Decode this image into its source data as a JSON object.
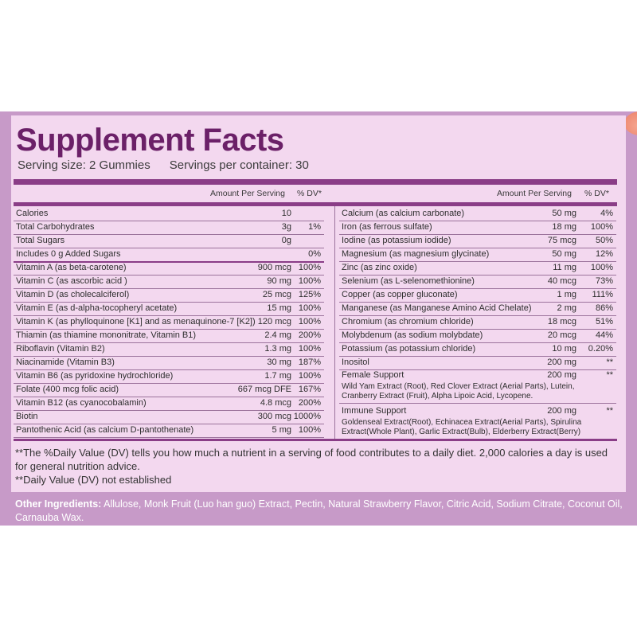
{
  "title": "Supplement Facts",
  "serving_size": "Serving size: 2 Gummies",
  "servings_per_container": "Servings per container: 30",
  "header": {
    "amount_per_serving": "Amount Per Serving",
    "dv": "% DV*"
  },
  "left_rows": [
    {
      "label": "Calories",
      "amount": "10",
      "dv": ""
    },
    {
      "label": "Total Carbohydrates",
      "amount": "3g",
      "dv": "1%"
    },
    {
      "label": "Total Sugars",
      "amount": "0g",
      "dv": ""
    },
    {
      "label": "Includes 0 g Added Sugars",
      "amount": "",
      "dv": "0%"
    },
    {
      "label": "Vitamin A (as beta-carotene)",
      "amount": "900 mcg",
      "dv": "100%"
    },
    {
      "label": "Vitamin C (as ascorbic acid )",
      "amount": "90 mg",
      "dv": "100%"
    },
    {
      "label": "Vitamin D (as cholecalciferol)",
      "amount": "25 mcg",
      "dv": "125%"
    },
    {
      "label": "Vitamin E (as d-alpha-tocopheryl acetate)",
      "amount": "15 mg",
      "dv": "100%"
    },
    {
      "label": "Vitamin K (as phylloquinone [K1] and as menaquinone-7 [K2])",
      "amount": "120 mcg",
      "dv": "100%"
    },
    {
      "label": "Thiamin (as thiamine mononitrate, Vitamin B1)",
      "amount": "2.4 mg",
      "dv": "200%"
    },
    {
      "label": "Riboflavin (Vitamin B2)",
      "amount": "1.3 mg",
      "dv": "100%"
    },
    {
      "label": "Niacinamide (Vitamin B3)",
      "amount": "30 mg",
      "dv": "187%"
    },
    {
      "label": "Vitamin B6 (as pyridoxine hydrochloride)",
      "amount": "1.7 mg",
      "dv": "100%"
    },
    {
      "label": "Folate (400 mcg folic acid)",
      "amount": "667 mcg DFE",
      "dv": "167%"
    },
    {
      "label": "Vitamin B12 (as cyanocobalamin)",
      "amount": "4.8 mcg",
      "dv": "200%"
    },
    {
      "label": "Biotin",
      "amount": "300 mcg",
      "dv": "1000%"
    },
    {
      "label": "Pantothenic Acid (as calcium D-pantothenate)",
      "amount": "5 mg",
      "dv": "100%"
    }
  ],
  "right_rows": [
    {
      "label": "Calcium (as calcium carbonate)",
      "amount": "50 mg",
      "dv": "4%"
    },
    {
      "label": "Iron (as ferrous sulfate)",
      "amount": "18 mg",
      "dv": "100%"
    },
    {
      "label": "Iodine (as potassium iodide)",
      "amount": "75 mcg",
      "dv": "50%"
    },
    {
      "label": "Magnesium (as magnesium glycinate)",
      "amount": "50 mg",
      "dv": "12%"
    },
    {
      "label": "Zinc (as zinc oxide)",
      "amount": "11 mg",
      "dv": "100%"
    },
    {
      "label": "Selenium (as L-selenomethionine)",
      "amount": "40 mcg",
      "dv": "73%"
    },
    {
      "label": "Copper (as copper gluconate)",
      "amount": "1 mg",
      "dv": "111%"
    },
    {
      "label": "Manganese (as Manganese Amino Acid Chelate)",
      "amount": "2 mg",
      "dv": "86%"
    },
    {
      "label": "Chromium (as chromium chloride)",
      "amount": "18 mcg",
      "dv": "51%"
    },
    {
      "label": "Molybdenum (as sodium molybdate)",
      "amount": "20 mcg",
      "dv": "44%"
    },
    {
      "label": "Potassium (as potassium chloride)",
      "amount": "10 mg",
      "dv": "0.20%"
    },
    {
      "label": "Inositol",
      "amount": "200 mg",
      "dv": "**"
    }
  ],
  "female_support": {
    "label": "Female Support",
    "amount": "200 mg",
    "dv": "**",
    "ingredients": "Wild Yam Extract (Root), Red Clover Extract (Aerial Parts), Lutein, Cranberry Extract (Fruit), Alpha Lipoic Acid, Lycopene."
  },
  "immune_support": {
    "label": "Immune Support",
    "amount": "200 mg",
    "dv": "**",
    "ingredients": "Goldenseal Extract(Root), Echinacea Extract(Aerial Parts), Spirulina Extract(Whole Plant), Garlic Extract(Bulb), Elderberry Extract(Berry)"
  },
  "footnote_1": "**The %Daily Value (DV) tells you how much a nutrient in a serving of food contributes to a daily diet. 2,000 calories a day is used for general nutrition advice.",
  "footnote_2": "**Daily Value (DV) not established",
  "other_ingredients_label": "Other Ingredients:",
  "other_ingredients": "Allulose, Monk Fruit (Luo han guo) Extract, Pectin, Natural Strawberry Flavor, Citric Acid, Sodium Citrate, Coconut Oil, Carnauba Wax.",
  "colors": {
    "title": "#6b2068",
    "bar": "#8a3d87",
    "panel": "#c79ac8",
    "box": "#f3d8ef"
  }
}
